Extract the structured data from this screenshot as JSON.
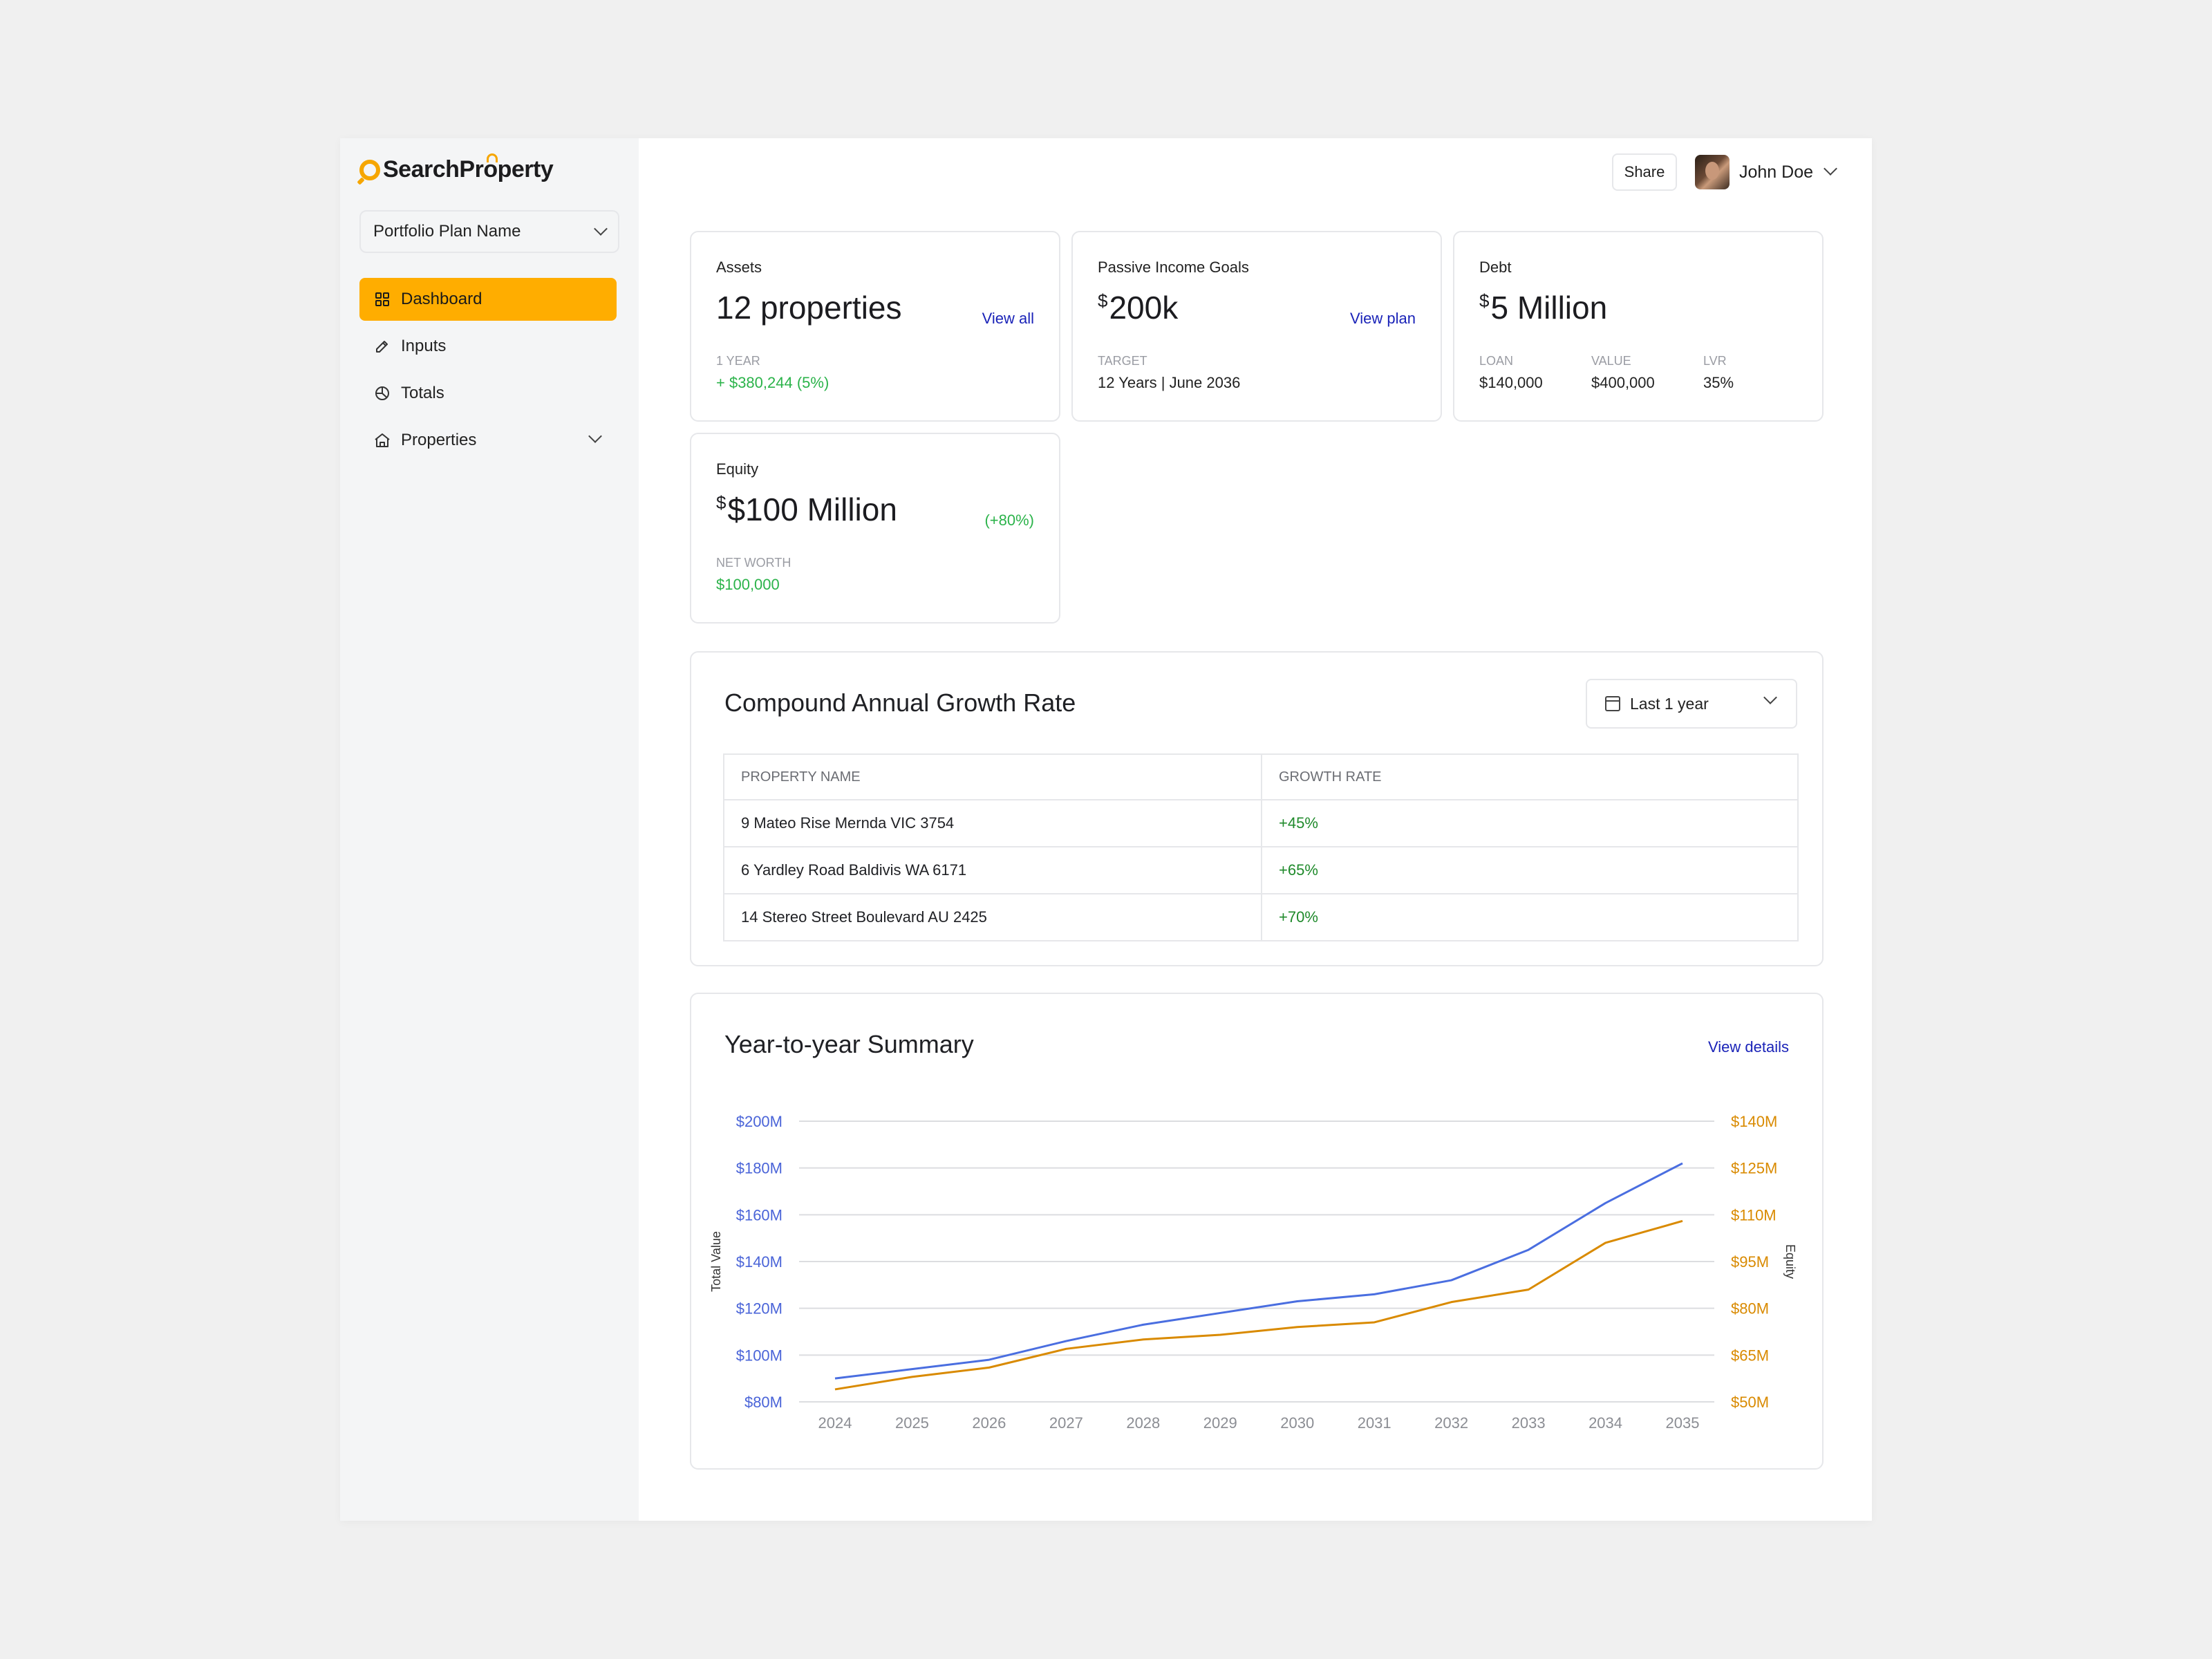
{
  "brand": {
    "name_part1": "Search",
    "name_part2": "Pr",
    "name_part3": "perty"
  },
  "sidebar": {
    "plan_select": "Portfolio Plan Name",
    "items": [
      {
        "label": "Dashboard",
        "icon": "grid-icon",
        "active": true
      },
      {
        "label": "Inputs",
        "icon": "pencil-icon"
      },
      {
        "label": "Totals",
        "icon": "pie-chart-icon"
      },
      {
        "label": "Properties",
        "icon": "home-icon",
        "expandable": true
      }
    ]
  },
  "header": {
    "share_label": "Share",
    "user_name": "John Doe"
  },
  "cards": {
    "assets": {
      "label": "Assets",
      "value": "12 properties",
      "link": "View all",
      "sub_label": "1 YEAR",
      "sub_value": "+ $380,244 (5%)"
    },
    "passive": {
      "label": "Passive Income Goals",
      "currency": "$",
      "value": "200k",
      "link": "View plan",
      "sub_label": "TARGET",
      "sub_value": "12 Years | June 2036"
    },
    "debt": {
      "label": "Debt",
      "currency": "$",
      "value": "5 Million",
      "subs": [
        {
          "label": "LOAN",
          "value": "$140,000"
        },
        {
          "label": "VALUE",
          "value": "$400,000"
        },
        {
          "label": "LVR",
          "value": "35%"
        }
      ]
    },
    "equity": {
      "label": "Equity",
      "currency": "$",
      "value": "$100 Million",
      "change": "(+80%)",
      "sub_label": "NET WORTH",
      "sub_value": "$100,000"
    }
  },
  "cagr": {
    "title": "Compound Annual Growth Rate",
    "range": "Last 1 year",
    "columns": [
      "PROPERTY NAME",
      "GROWTH RATE"
    ],
    "rows": [
      {
        "name": "9 Mateo Rise Mernda VIC 3754",
        "rate": "+45%"
      },
      {
        "name": "6 Yardley Road Baldivis WA 6171",
        "rate": "+65%"
      },
      {
        "name": "14 Stereo Street Boulevard AU 2425",
        "rate": "+70%"
      }
    ]
  },
  "summary": {
    "title": "Year-to-year Summary",
    "link": "View details"
  },
  "chart_data": {
    "type": "line",
    "x": [
      2024,
      2025,
      2026,
      2027,
      2028,
      2029,
      2030,
      2031,
      2032,
      2033,
      2034,
      2035
    ],
    "y_left_label": "Total Value",
    "y_right_label": "Equity",
    "y_left_ticks": [
      "$80M",
      "$100M",
      "$120M",
      "$140M",
      "$160M",
      "$180M",
      "$200M"
    ],
    "y_right_ticks": [
      "$50M",
      "$65M",
      "$80M",
      "$95M",
      "$110M",
      "$125M",
      "$140M"
    ],
    "ylim_left": [
      80,
      200
    ],
    "ylim_right": [
      50,
      140
    ],
    "grid": true,
    "series": [
      {
        "name": "Total Value",
        "axis": "left",
        "color": "#4a6ee0",
        "values": [
          90,
          94,
          98,
          106,
          113,
          118,
          123,
          126,
          132,
          145,
          165,
          182
        ]
      },
      {
        "name": "Equity",
        "axis": "right",
        "color": "#d98a00",
        "values": [
          54,
          58,
          61,
          67,
          70,
          71.5,
          74,
          75.5,
          82,
          86,
          101,
          108
        ]
      }
    ]
  }
}
